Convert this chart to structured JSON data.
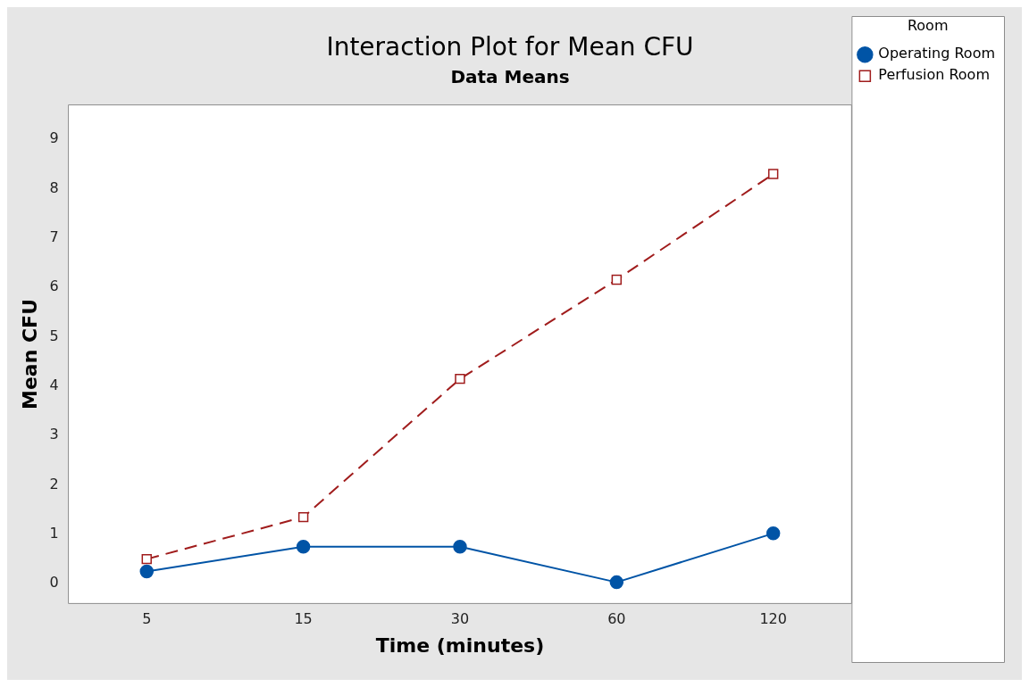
{
  "chart_data": {
    "type": "line",
    "title": "Interaction Plot for Mean CFU",
    "subtitle": "Data Means",
    "xlabel": "Time (minutes)",
    "ylabel": "Mean CFU",
    "legend_title": "Room",
    "categories": [
      "5",
      "15",
      "30",
      "60",
      "120"
    ],
    "series": [
      {
        "name": "Operating Room",
        "color": "#0054a6",
        "marker": "circle",
        "line_style": "solid",
        "values": [
          0.25,
          0.75,
          0.75,
          0.03,
          1.02
        ]
      },
      {
        "name": "Perfusion Room",
        "color": "#a01c1c",
        "marker": "square",
        "line_style": "dashed",
        "values": [
          0.5,
          1.35,
          4.15,
          6.16,
          8.3
        ]
      }
    ],
    "ylim": [
      -0.4,
      9.7
    ],
    "yticks": [
      0,
      1,
      2,
      3,
      4,
      5,
      6,
      7,
      8,
      9
    ],
    "grid": false,
    "legend": "top right"
  }
}
